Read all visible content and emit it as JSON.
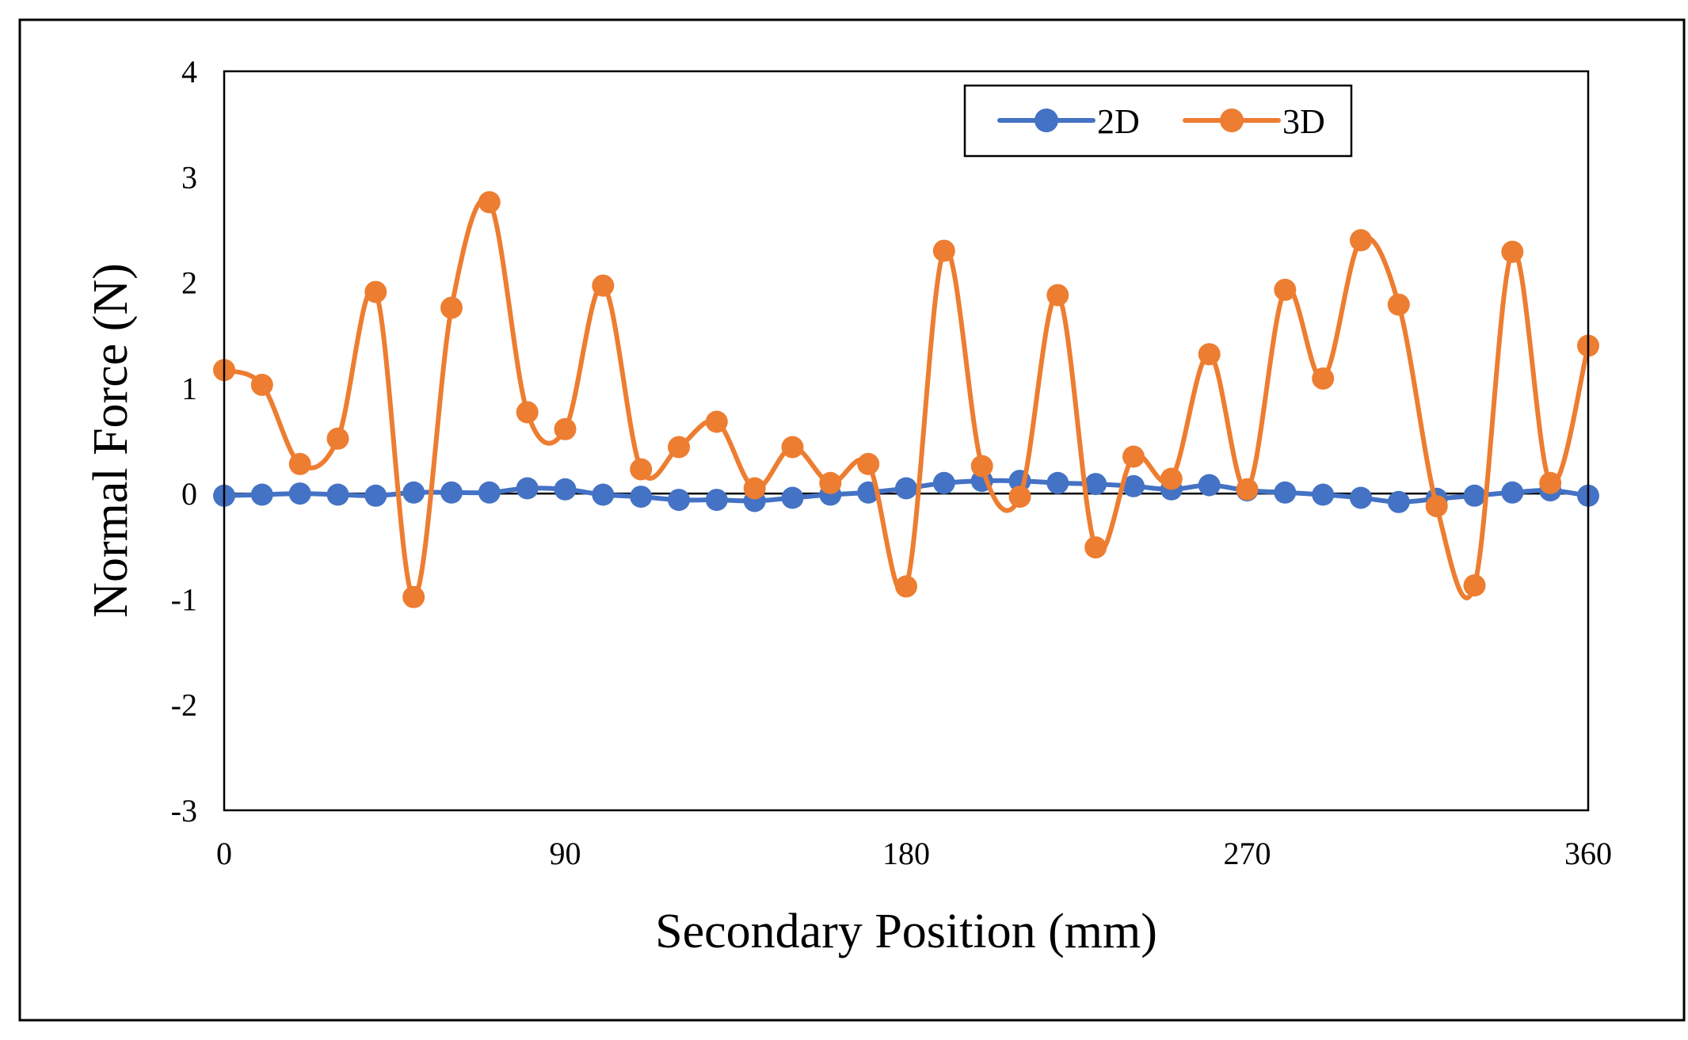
{
  "chart_data": {
    "type": "line",
    "title": "",
    "xlabel": "Secondary Position (mm)",
    "ylabel": "Normal Force (N)",
    "xlim": [
      0,
      360
    ],
    "ylim": [
      -3,
      4
    ],
    "xticks": [
      0,
      90,
      180,
      270,
      360
    ],
    "yticks": [
      -3,
      -2,
      -1,
      0,
      1,
      2,
      3,
      4
    ],
    "xtick_labels": [
      "0",
      "90",
      "180",
      "270",
      "360"
    ],
    "ytick_labels": [
      "-3",
      "-2",
      "-1",
      "0",
      "1",
      "2",
      "3",
      "4"
    ],
    "grid": false,
    "zero_line": true,
    "legend_position": "top-right",
    "x": [
      0,
      10,
      20,
      30,
      40,
      50,
      60,
      70,
      80,
      90,
      100,
      110,
      120,
      130,
      140,
      150,
      160,
      170,
      180,
      190,
      200,
      210,
      220,
      230,
      240,
      250,
      260,
      270,
      280,
      290,
      300,
      310,
      320,
      330,
      340,
      350,
      360
    ],
    "series": [
      {
        "name": "2D",
        "color": "#4472C4",
        "values": [
          -0.02,
          -0.01,
          0.0,
          -0.01,
          -0.02,
          0.01,
          0.01,
          0.01,
          0.05,
          0.04,
          -0.01,
          -0.03,
          -0.06,
          -0.06,
          -0.07,
          -0.04,
          -0.01,
          0.01,
          0.05,
          0.1,
          0.12,
          0.12,
          0.1,
          0.09,
          0.07,
          0.04,
          0.08,
          0.03,
          0.01,
          -0.01,
          -0.04,
          -0.08,
          -0.05,
          -0.02,
          0.01,
          0.03,
          -0.02
        ]
      },
      {
        "name": "3D",
        "color": "#ED7D31",
        "values": [
          1.17,
          1.03,
          0.28,
          0.52,
          1.91,
          -0.98,
          1.76,
          2.76,
          0.77,
          0.61,
          1.97,
          0.23,
          0.44,
          0.68,
          0.05,
          0.44,
          0.1,
          0.28,
          -0.88,
          2.3,
          0.26,
          -0.03,
          1.88,
          -0.51,
          0.35,
          0.14,
          1.32,
          0.04,
          1.93,
          1.09,
          2.4,
          1.79,
          -0.12,
          -0.87,
          2.29,
          0.1,
          1.4
        ]
      }
    ]
  }
}
